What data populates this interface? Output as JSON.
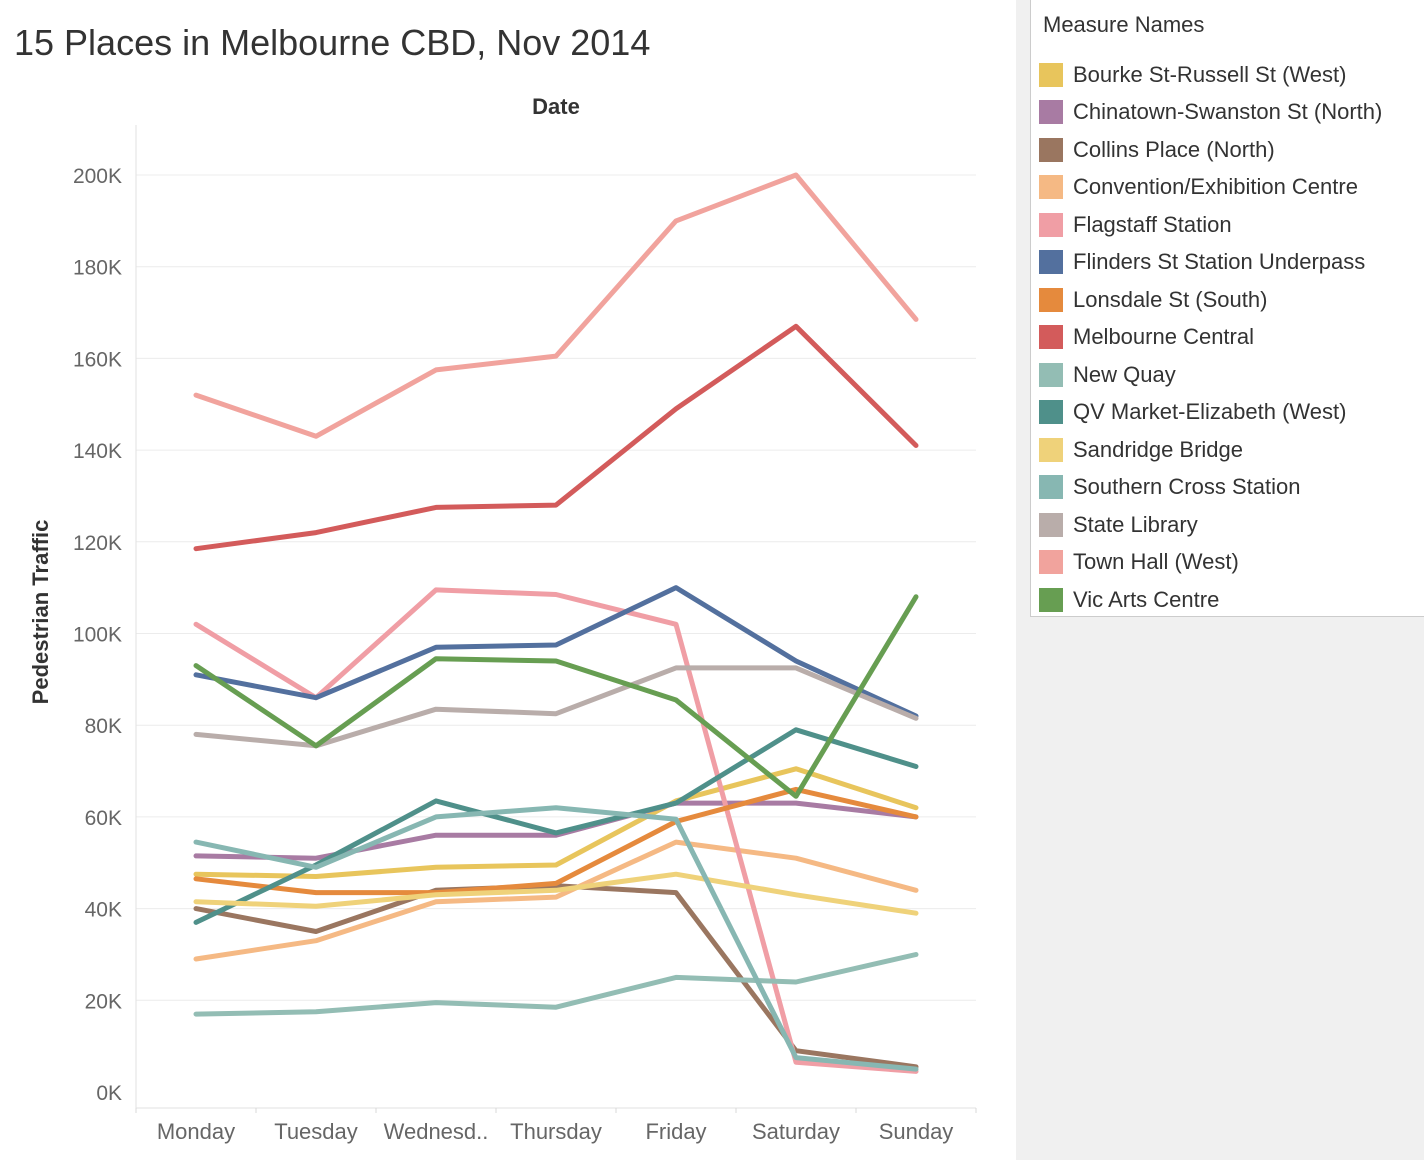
{
  "chart_data": {
    "type": "line",
    "title": "15 Places in Melbourne CBD, Nov 2014",
    "xlabel": "Date",
    "ylabel": "Pedestrian Traffic",
    "categories": [
      "Monday",
      "Tuesday",
      "Wednesd..",
      "Thursday",
      "Friday",
      "Saturday",
      "Sunday"
    ],
    "y_ticks": [
      "0K",
      "20K",
      "40K",
      "60K",
      "80K",
      "100K",
      "120K",
      "140K",
      "160K",
      "180K",
      "200K"
    ],
    "ylim": [
      0,
      210000
    ],
    "grid": true,
    "legend_title": "Measure Names",
    "legend_position": "right",
    "series": [
      {
        "name": "Bourke St-Russell St (West)",
        "color": "#e8c55c",
        "values": [
          47500,
          47000,
          49000,
          49500,
          63500,
          70500,
          62000
        ]
      },
      {
        "name": "Chinatown-Swanston St (North)",
        "color": "#a87ba3",
        "values": [
          51500,
          51000,
          56000,
          56000,
          63000,
          63000,
          60000
        ]
      },
      {
        "name": "Collins Place (North)",
        "color": "#9a7660",
        "values": [
          40000,
          35000,
          44000,
          45000,
          43500,
          9000,
          5500
        ]
      },
      {
        "name": "Convention/Exhibition Centre",
        "color": "#f5b984",
        "values": [
          29000,
          33000,
          41500,
          42500,
          54500,
          51000,
          44000
        ]
      },
      {
        "name": "Flagstaff Station",
        "color": "#f09ea5",
        "values": [
          102000,
          86000,
          109500,
          108500,
          102000,
          6500,
          4500
        ]
      },
      {
        "name": "Flinders St Station Underpass",
        "color": "#53709e",
        "values": [
          91000,
          86000,
          97000,
          97500,
          110000,
          94000,
          82000
        ]
      },
      {
        "name": "Lonsdale St (South)",
        "color": "#e58a3d",
        "values": [
          46500,
          43500,
          43500,
          45500,
          59000,
          66000,
          60000
        ]
      },
      {
        "name": "Melbourne Central",
        "color": "#d35b5b",
        "values": [
          118500,
          122000,
          127500,
          128000,
          149000,
          167000,
          141000
        ]
      },
      {
        "name": "New Quay",
        "color": "#93bdb4",
        "values": [
          17000,
          17500,
          19500,
          18500,
          25000,
          24000,
          30000
        ]
      },
      {
        "name": "QV Market-Elizabeth (West)",
        "color": "#4f908a",
        "values": [
          37000,
          49500,
          63500,
          56500,
          63000,
          79000,
          71000
        ]
      },
      {
        "name": "Sandridge Bridge",
        "color": "#efd27a",
        "values": [
          41500,
          40500,
          43000,
          44000,
          47500,
          43000,
          39000
        ]
      },
      {
        "name": "Southern Cross Station",
        "color": "#87b7b2",
        "values": [
          54500,
          49000,
          60000,
          62000,
          59500,
          7500,
          5000
        ]
      },
      {
        "name": "State Library",
        "color": "#b9adaa",
        "values": [
          78000,
          75500,
          83500,
          82500,
          92500,
          92500,
          81500
        ]
      },
      {
        "name": "Town Hall (West)",
        "color": "#f1a39d",
        "values": [
          152000,
          143000,
          157500,
          160500,
          190000,
          200000,
          168500
        ]
      },
      {
        "name": "Vic Arts Centre",
        "color": "#679e52",
        "values": [
          93000,
          75500,
          94500,
          94000,
          85500,
          64500,
          108000
        ]
      }
    ]
  }
}
